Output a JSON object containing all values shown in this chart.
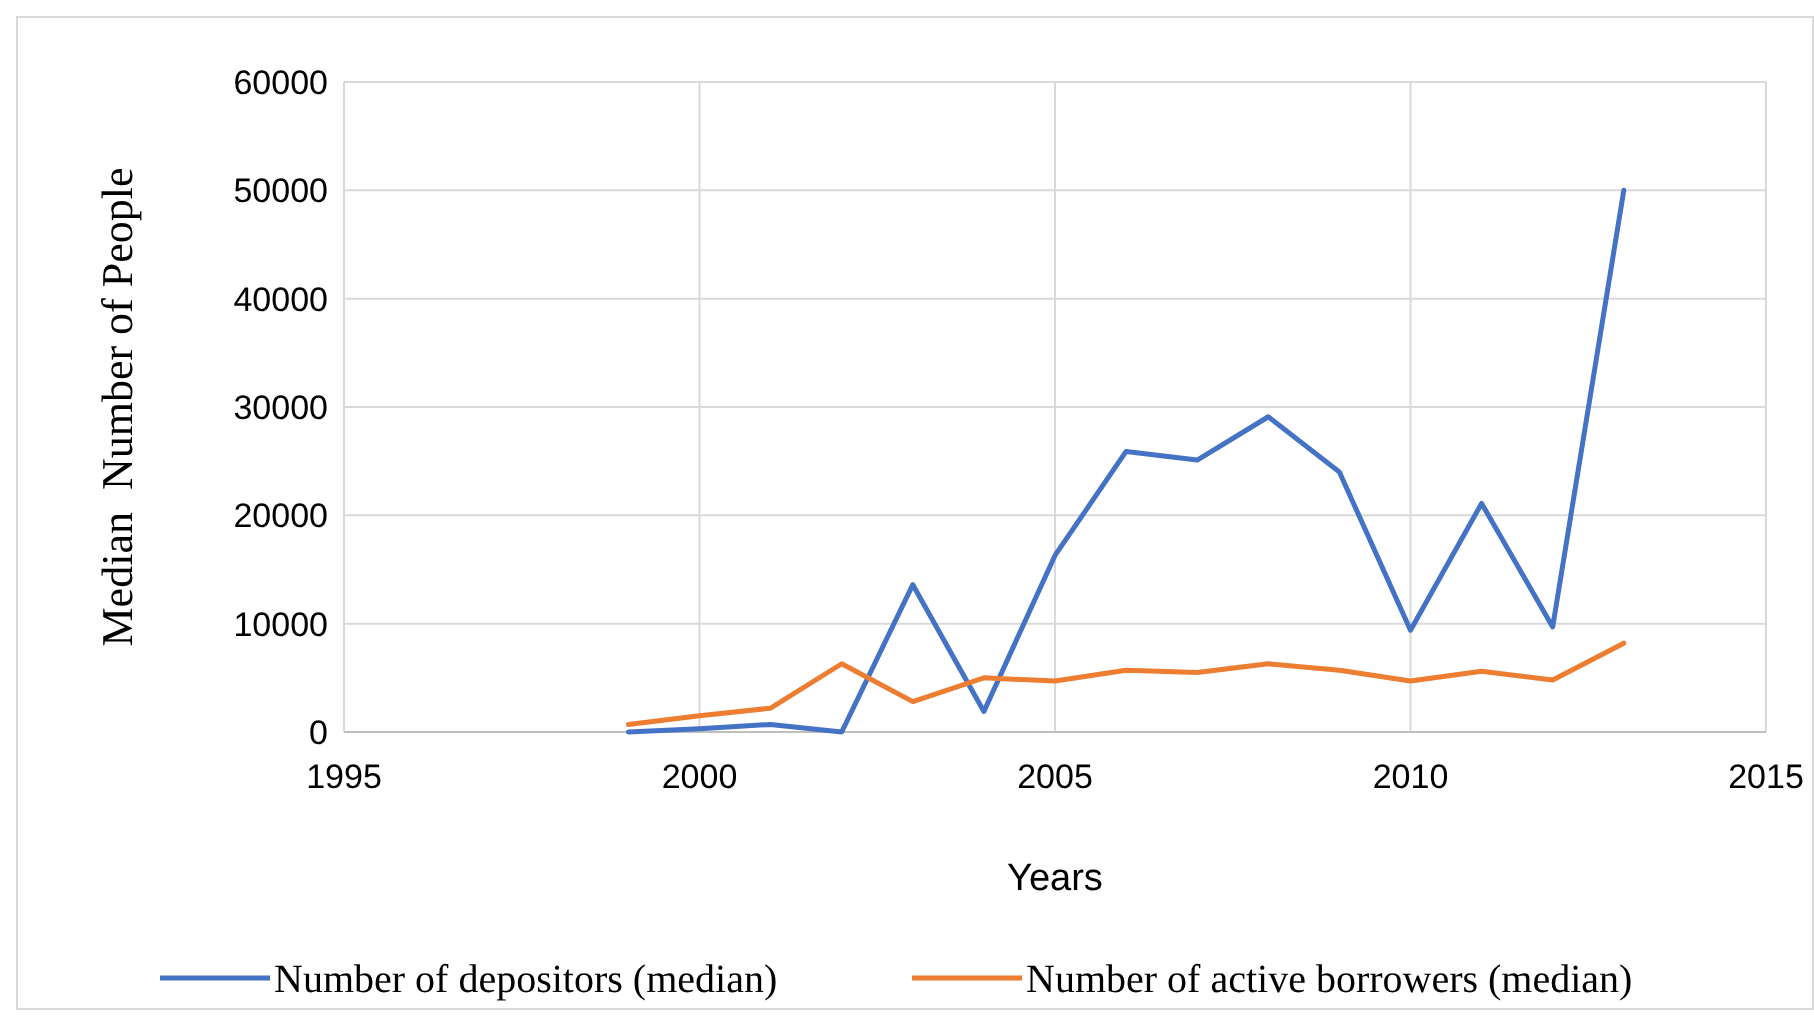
{
  "chart_data": {
    "type": "line",
    "xlabel": "Years",
    "ylabel": "Median  Number of People",
    "x": [
      1999,
      2000,
      2001,
      2002,
      2003,
      2004,
      2005,
      2006,
      2007,
      2008,
      2009,
      2010,
      2011,
      2012,
      2013
    ],
    "series": [
      {
        "name": "Number of depositors (median)",
        "color": "#4472c4",
        "values": [
          0,
          300,
          700,
          0,
          13600,
          1900,
          16300,
          25900,
          25100,
          29100,
          24000,
          9400,
          21100,
          9700,
          50000
        ]
      },
      {
        "name": "Number of active borrowers (median)",
        "color": "#ed7d31",
        "values": [
          700,
          1500,
          2200,
          6300,
          2800,
          5000,
          4700,
          5700,
          5500,
          6300,
          5700,
          4700,
          5600,
          4800,
          8200
        ]
      }
    ],
    "xlim": [
      1995,
      2015
    ],
    "xticks": [
      1995,
      2000,
      2005,
      2010,
      2015
    ],
    "ylim": [
      0,
      60000
    ],
    "yticks": [
      0,
      10000,
      20000,
      30000,
      40000,
      50000,
      60000
    ],
    "grid": true,
    "legend": "bottom",
    "marker": "none",
    "line_style": "solid"
  }
}
